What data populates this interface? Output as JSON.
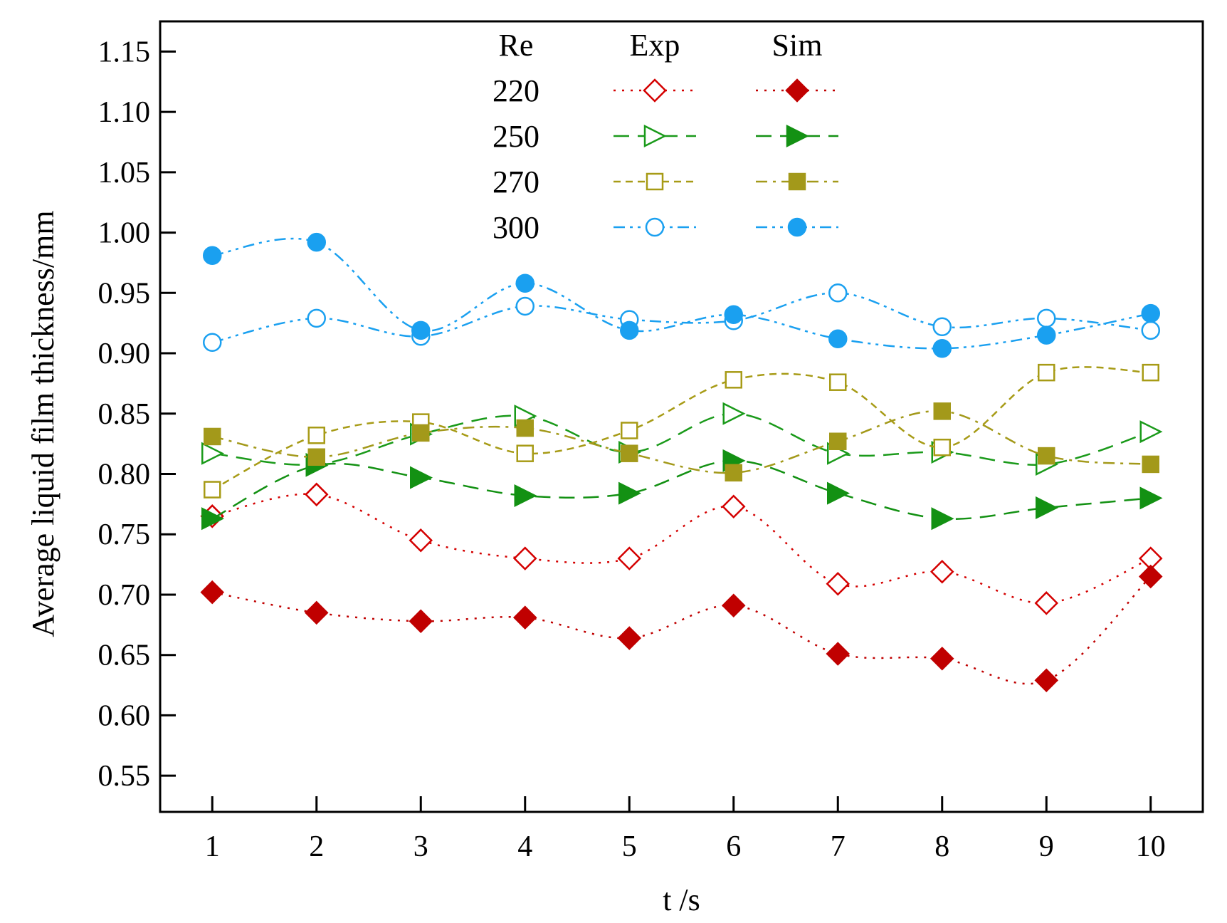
{
  "chart_data": {
    "type": "line",
    "xlabel": "t /s",
    "ylabel": "Average liquid film thickness/mm",
    "xlim": [
      0.5,
      10.5
    ],
    "ylim": [
      0.52,
      1.175
    ],
    "x": [
      1,
      2,
      3,
      4,
      5,
      6,
      7,
      8,
      9,
      10
    ],
    "x_ticks": [
      1,
      2,
      3,
      4,
      5,
      6,
      7,
      8,
      9,
      10
    ],
    "x_tick_labels": [
      "1",
      "2",
      "3",
      "4",
      "5",
      "6",
      "7",
      "8",
      "9",
      "10"
    ],
    "y_ticks": [
      0.55,
      0.6,
      0.65,
      0.7,
      0.75,
      0.8,
      0.85,
      0.9,
      0.95,
      1.0,
      1.05,
      1.1,
      1.15
    ],
    "y_tick_labels": [
      "0.55",
      "0.60",
      "0.65",
      "0.70",
      "0.75",
      "0.80",
      "0.85",
      "0.90",
      "0.95",
      "1.00",
      "1.05",
      "1.10",
      "1.15"
    ],
    "grid": false,
    "legend": {
      "placement": "top-center",
      "headers": [
        "Re",
        "Exp",
        "Sim"
      ],
      "rows": [
        "220",
        "250",
        "270",
        "300"
      ]
    },
    "series": [
      {
        "re": "220",
        "kind": "Exp",
        "color": "#d40000",
        "marker": "diamond-open",
        "dash": "dotted",
        "values": [
          0.765,
          0.783,
          0.745,
          0.73,
          0.73,
          0.773,
          0.709,
          0.719,
          0.693,
          0.73
        ]
      },
      {
        "re": "220",
        "kind": "Sim",
        "color": "#c00000",
        "marker": "diamond-filled",
        "dash": "dotted",
        "values": [
          0.702,
          0.685,
          0.678,
          0.681,
          0.664,
          0.691,
          0.651,
          0.647,
          0.629,
          0.715
        ]
      },
      {
        "re": "250",
        "kind": "Exp",
        "color": "#1a9a1a",
        "marker": "triangle-right-open",
        "dash": "dashed",
        "values": [
          0.817,
          0.808,
          0.833,
          0.848,
          0.818,
          0.85,
          0.817,
          0.818,
          0.808,
          0.835
        ]
      },
      {
        "re": "250",
        "kind": "Sim",
        "color": "#139113",
        "marker": "triangle-right-filled",
        "dash": "dashed",
        "values": [
          0.763,
          0.807,
          0.797,
          0.782,
          0.784,
          0.811,
          0.784,
          0.763,
          0.772,
          0.78
        ]
      },
      {
        "re": "270",
        "kind": "Exp",
        "color": "#a79b16",
        "marker": "square-open",
        "dash": "short-dashed",
        "values": [
          0.787,
          0.832,
          0.843,
          0.817,
          0.836,
          0.878,
          0.876,
          0.822,
          0.884,
          0.884
        ]
      },
      {
        "re": "270",
        "kind": "Sim",
        "color": "#a3991a",
        "marker": "square-filled",
        "dash": "dash-dot",
        "values": [
          0.831,
          0.814,
          0.834,
          0.838,
          0.817,
          0.801,
          0.827,
          0.852,
          0.815,
          0.808
        ]
      },
      {
        "re": "300",
        "kind": "Exp",
        "color": "#1aa0f0",
        "marker": "circle-open",
        "dash": "dash-dot-dot",
        "values": [
          0.909,
          0.929,
          0.914,
          0.939,
          0.928,
          0.927,
          0.95,
          0.922,
          0.929,
          0.919
        ]
      },
      {
        "re": "300",
        "kind": "Sim",
        "color": "#1aa0f0",
        "marker": "circle-filled",
        "dash": "dash-dot-dot",
        "values": [
          0.981,
          0.992,
          0.919,
          0.958,
          0.919,
          0.932,
          0.912,
          0.904,
          0.915,
          0.933
        ]
      }
    ]
  }
}
